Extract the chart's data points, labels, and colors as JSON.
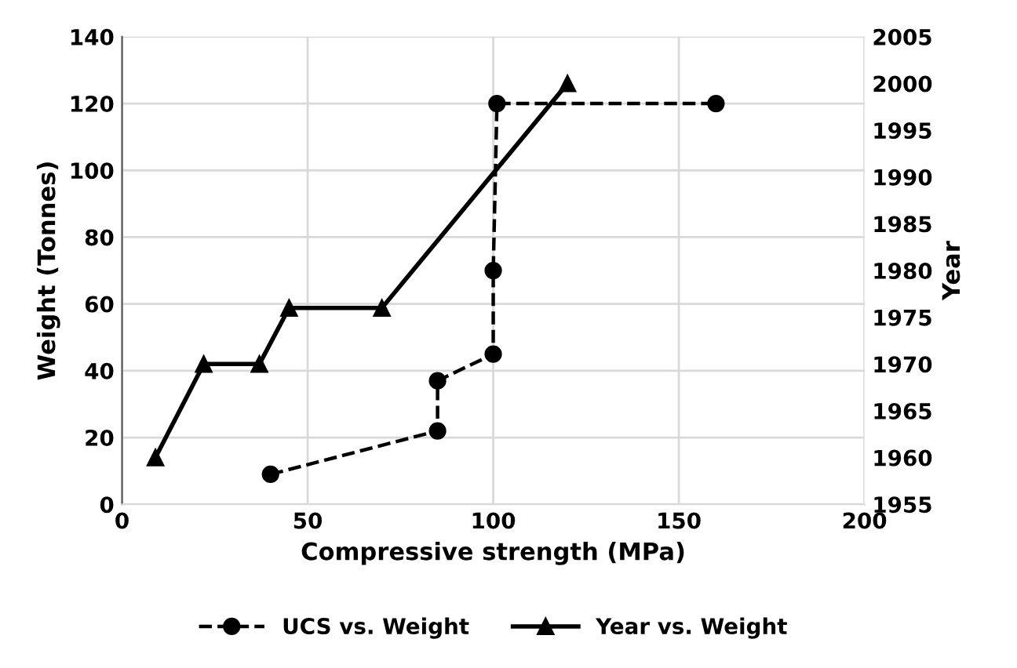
{
  "chart_data": {
    "type": "line",
    "xlabel": "Compressive strength (MPa)",
    "ylabel": "Weight (Tonnes)",
    "y2label": "Year",
    "xlim": [
      0,
      200
    ],
    "xticks": [
      0,
      50,
      100,
      150,
      200
    ],
    "ylim": [
      0,
      140
    ],
    "yticks": [
      0,
      20,
      40,
      60,
      80,
      100,
      120,
      140
    ],
    "y2lim": [
      1955,
      2005
    ],
    "y2ticks": [
      1955,
      1960,
      1965,
      1970,
      1975,
      1980,
      1985,
      1990,
      1995,
      2000,
      2005
    ],
    "grid": true,
    "legend": "bottom",
    "series": [
      {
        "name": "UCS vs. Weight",
        "color": "#000000",
        "marker": "circle",
        "line_style": "dashed",
        "x": [
          40,
          85,
          85,
          100,
          100,
          101,
          160
        ],
        "values": [
          9,
          22,
          37,
          45,
          70,
          120,
          120
        ]
      },
      {
        "name": "Year vs. Weight",
        "color": "#000000",
        "marker": "triangle",
        "line_style": "solid",
        "axis": "y2",
        "x": [
          9,
          22,
          37,
          45,
          70,
          120
        ],
        "values": [
          1960,
          1970,
          1970,
          1976,
          1976,
          2000
        ]
      }
    ]
  }
}
